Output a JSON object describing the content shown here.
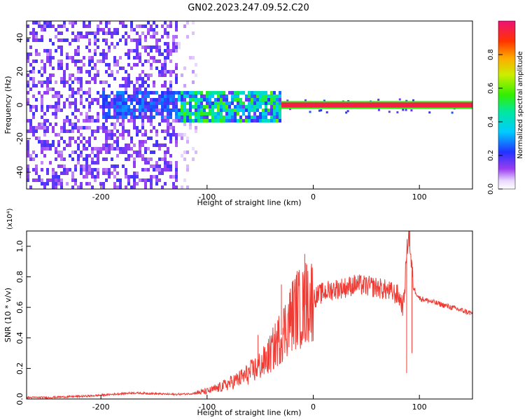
{
  "title": "GN02.2023.247.09.52.C20",
  "chart_data": [
    {
      "type": "heatmap",
      "title": "GN02.2023.247.09.52.C20",
      "xlabel": "Height of straight line (km)",
      "ylabel": "Frequency (Hz)",
      "xlim": [
        -270,
        150
      ],
      "ylim": [
        -50,
        50
      ],
      "x_ticks": [
        -200,
        -100,
        0,
        100
      ],
      "y_ticks": [
        -40,
        -20,
        0,
        20,
        40
      ],
      "x_tick_labels": [
        "-200",
        "-100",
        "0",
        "100"
      ],
      "y_tick_labels": [
        "-40",
        "-20",
        "0",
        "20",
        "40"
      ],
      "colorbar": {
        "label": "Normalized spectral amplitude",
        "range": [
          0,
          1
        ],
        "ticks": [
          0.0,
          0.2,
          0.4,
          0.6,
          0.8
        ],
        "tick_labels": [
          "0.0",
          "0.2",
          "0.4",
          "0.6",
          "0.8"
        ],
        "colormap": "rainbow"
      },
      "regions": [
        {
          "x": [
            -270,
            -127
          ],
          "y": [
            -50,
            50
          ],
          "description": "Scattered noise",
          "amplitude": 0.2
        },
        {
          "x": [
            -127,
            -110
          ],
          "y": [
            -50,
            50
          ],
          "description": "Sparse noise",
          "amplitude": 0.05
        },
        {
          "x": [
            -200,
            -127
          ],
          "y": [
            -8,
            8
          ],
          "description": "Weak signal band",
          "amplitude": 0.3
        },
        {
          "x": [
            -127,
            -30
          ],
          "y": [
            -10,
            8
          ],
          "description": "Noisy signal band",
          "amplitude": 0.5
        },
        {
          "x": [
            -30,
            150
          ],
          "y": [
            -1.5,
            1.5
          ],
          "description": "Clean carrier",
          "amplitude": 1.0
        }
      ],
      "grid": false
    },
    {
      "type": "line",
      "xlabel": "Height of straight line (km)",
      "ylabel": "SNR (10 * v/v)",
      "y_multiplier": "(x10⁴)",
      "xlim": [
        -270,
        150
      ],
      "ylim": [
        0,
        1.1
      ],
      "x_ticks": [
        -200,
        -100,
        0,
        100
      ],
      "y_ticks": [
        0.0,
        0.2,
        0.4,
        0.6,
        0.8,
        1.0
      ],
      "x_tick_labels": [
        "-200",
        "-100",
        "0",
        "100"
      ],
      "y_tick_labels": [
        "0.0",
        "0.2",
        "0.4",
        "0.6",
        "0.8",
        "1.0"
      ],
      "color": "#ef3b33",
      "x": [
        -270,
        -250,
        -230,
        -210,
        -190,
        -170,
        -150,
        -130,
        -115,
        -100,
        -90,
        -80,
        -70,
        -60,
        -50,
        -45,
        -40,
        -35,
        -30,
        -25,
        -20,
        -15,
        -10,
        -5,
        0,
        5,
        10,
        20,
        30,
        40,
        50,
        60,
        70,
        80,
        85,
        88,
        90,
        92,
        95,
        100,
        110,
        120,
        130,
        140,
        150
      ],
      "y": [
        0.01,
        0.01,
        0.015,
        0.02,
        0.03,
        0.04,
        0.035,
        0.03,
        0.035,
        0.05,
        0.07,
        0.1,
        0.13,
        0.17,
        0.22,
        0.25,
        0.3,
        0.36,
        0.42,
        0.48,
        0.55,
        0.6,
        0.58,
        0.64,
        0.66,
        0.68,
        0.7,
        0.72,
        0.73,
        0.75,
        0.74,
        0.73,
        0.71,
        0.68,
        0.6,
        0.95,
        1.1,
        0.9,
        0.72,
        0.66,
        0.64,
        0.62,
        0.6,
        0.58,
        0.56
      ],
      "spikes": [
        {
          "x": -52,
          "y": 0.42
        },
        {
          "x": -30,
          "y": 0.75
        },
        {
          "x": -10,
          "y": 0.83
        },
        {
          "x": -8,
          "y": 0.95
        },
        {
          "x": -7,
          "y": 0.89
        },
        {
          "x": 88,
          "y": 0.17
        },
        {
          "x": 91,
          "y": 1.1
        },
        {
          "x": 93,
          "y": 0.3
        }
      ],
      "grid": false
    }
  ]
}
